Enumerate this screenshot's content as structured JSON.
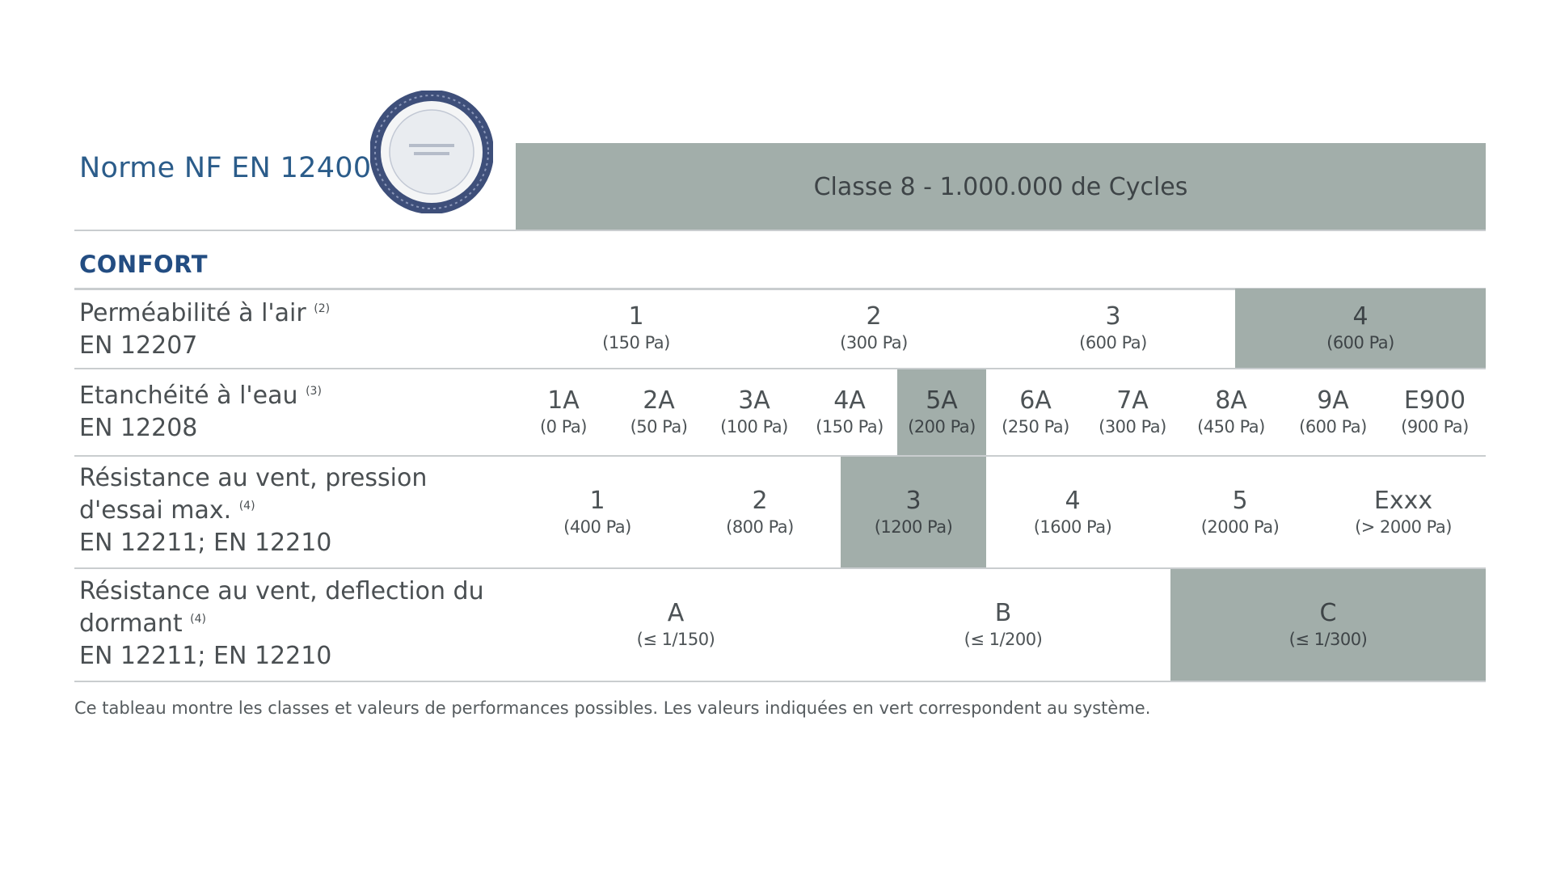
{
  "header": {
    "norm_title": "Norme NF EN 12400",
    "class_banner": "Classe 8 - 1.000.000 de Cycles"
  },
  "section_title": "CONFORT",
  "rows": [
    {
      "label_line1": "Perméabilité à l'air",
      "label_note": "(2)",
      "label_line2": "EN 12207",
      "cells": [
        {
          "value": "1",
          "sub": "(150 Pa)",
          "highlight": false
        },
        {
          "value": "2",
          "sub": "(300 Pa)",
          "highlight": false
        },
        {
          "value": "3",
          "sub": "(600 Pa)",
          "highlight": false
        },
        {
          "value": "4",
          "sub": "(600 Pa)",
          "highlight": true
        }
      ]
    },
    {
      "label_line1": "Etanchéité à l'eau",
      "label_note": "(3)",
      "label_line2": "EN 12208",
      "cells": [
        {
          "value": "1A",
          "sub": "(0 Pa)",
          "highlight": false
        },
        {
          "value": "2A",
          "sub": "(50 Pa)",
          "highlight": false
        },
        {
          "value": "3A",
          "sub": "(100 Pa)",
          "highlight": false
        },
        {
          "value": "4A",
          "sub": "(150 Pa)",
          "highlight": false
        },
        {
          "value": "5A",
          "sub": "(200 Pa)",
          "highlight": true
        },
        {
          "value": "6A",
          "sub": "(250 Pa)",
          "highlight": false
        },
        {
          "value": "7A",
          "sub": "(300 Pa)",
          "highlight": false
        },
        {
          "value": "8A",
          "sub": "(450 Pa)",
          "highlight": false
        },
        {
          "value": "9A",
          "sub": "(600 Pa)",
          "highlight": false
        },
        {
          "value": "E900",
          "sub": "(900 Pa)",
          "highlight": false
        }
      ]
    },
    {
      "label_line1": "Résistance au vent, pression",
      "label_line1b": "d'essai max.",
      "label_note": "(4)",
      "label_line2": "EN 12211; EN 12210",
      "cells": [
        {
          "value": "1",
          "sub": "(400 Pa)",
          "highlight": false
        },
        {
          "value": "2",
          "sub": "(800 Pa)",
          "highlight": false
        },
        {
          "value": "3",
          "sub": "(1200 Pa)",
          "highlight": true
        },
        {
          "value": "4",
          "sub": "(1600 Pa)",
          "highlight": false
        },
        {
          "value": "5",
          "sub": "(2000 Pa)",
          "highlight": false
        },
        {
          "value": "Exxx",
          "sub": "(> 2000 Pa)",
          "highlight": false
        }
      ]
    },
    {
      "label_line1": "Résistance au vent, deflection du",
      "label_line1b": "dormant",
      "label_note": "(4)",
      "label_line2": "EN 12211; EN 12210",
      "cells": [
        {
          "value": "A",
          "sub": "(≤ 1/150)",
          "highlight": false
        },
        {
          "value": "B",
          "sub": "(≤ 1/200)",
          "highlight": false
        },
        {
          "value": "C",
          "sub": "(≤ 1/300)",
          "highlight": true
        }
      ]
    }
  ],
  "footnote": "Ce tableau montre les classes et valeurs de performances possibles. Les valeurs indiquées en vert correspondent au système.",
  "colors": {
    "highlight": "#a2aeaa",
    "title_blue": "#2b5c8a",
    "section_blue": "#234d82",
    "rule": "#c9cdcf"
  }
}
